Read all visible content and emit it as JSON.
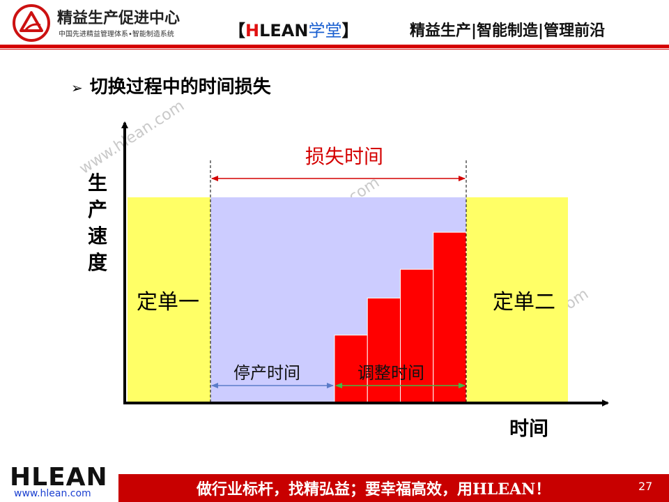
{
  "header": {
    "logo_title": "精益生产促进中心",
    "logo_subtitle": "中国先进精益管理体系•智能制造系统",
    "brand_open": "【",
    "brand_h": "H",
    "brand_lean": "LEAN",
    "brand_xuetang": "学堂",
    "brand_close": "】",
    "tagline": "精益生产|智能制造|管理前沿"
  },
  "section": {
    "bullet": "➢",
    "heading": "切换过程中的时间损失"
  },
  "diagram": {
    "y_axis_label": [
      "生",
      "产",
      "速",
      "度"
    ],
    "x_axis_label": "时间",
    "order_one": "定单一",
    "order_two": "定单二",
    "loss_time": "损失时间",
    "stop_time": "停产时间",
    "adjust_time": "调整时间",
    "ramp_levels": [
      0.33,
      0.51,
      0.65,
      0.83
    ],
    "colors": {
      "order_fill": "#ffff66",
      "loss_fill": "#ccccff",
      "ramp_fill": "#ff0000",
      "loss_arrow": "#d40000",
      "stop_arrow": "#5b7cc8",
      "adjust_arrow": "#44bb44"
    },
    "watermark": "www.hlean.com"
  },
  "footer": {
    "logo": "HLEAN",
    "url": "www.hlean.com",
    "slogan": "做行业标杆，找精弘益；要幸福高效，用HLEAN！",
    "page_number": "27"
  }
}
